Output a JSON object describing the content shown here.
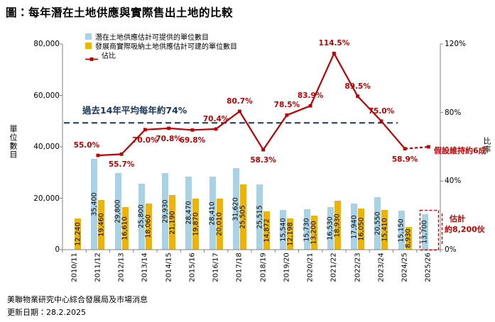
{
  "title": "圖：每年潛在土地供應與實際售出土地的比較",
  "colors": {
    "supply": "#A8D3E6",
    "absorbed": "#F0B400",
    "ratio": "#C00000",
    "average": "#17375E",
    "axis": "#808080"
  },
  "footer": {
    "source": "美聯物業研究中心綜合發展局及市場消息",
    "updated": "更新日期：28.2.2025"
  },
  "chart_data": {
    "type": "bar+line",
    "title": "每年潛在土地供應與實際售出土地的比較",
    "categories": [
      "2010/11",
      "2011/12",
      "2012/13",
      "2013/14",
      "2014/15",
      "2015/16",
      "2016/17",
      "2017/18",
      "2018/19",
      "2019/20",
      "2020/21",
      "2021/22",
      "2022/23",
      "2023/24",
      "2024/25",
      "2025/26"
    ],
    "left_axis": {
      "label": "單位數目",
      "min": 0,
      "max": 80000,
      "ticks": [
        0,
        20000,
        40000,
        60000,
        80000
      ]
    },
    "right_axis": {
      "label": "比率",
      "min": 0,
      "max": 120,
      "ticks": [
        0,
        40,
        80,
        120
      ],
      "unit": "%"
    },
    "series": [
      {
        "name": "潛在土地供應估計可提供的單位數目",
        "type": "bar",
        "color_key": "supply",
        "values": [
          null,
          35400,
          29800,
          25800,
          29930,
          28470,
          28410,
          31620,
          25515,
          15540,
          15730,
          16530,
          17940,
          20550,
          15150,
          13700
        ]
      },
      {
        "name": "發展商實際吸納土地供應估計可建的單位數目",
        "type": "bar",
        "color_key": "absorbed",
        "values": [
          12240,
          19460,
          16610,
          18060,
          21190,
          19870,
          20010,
          25505,
          14872,
          12198,
          13200,
          18930,
          16050,
          15410,
          8930,
          null
        ]
      },
      {
        "name": "佔比",
        "type": "line",
        "color_key": "ratio",
        "unit": "%",
        "values": [
          null,
          55.0,
          55.7,
          70.0,
          70.8,
          69.8,
          70.4,
          80.7,
          58.3,
          78.5,
          83.9,
          114.5,
          89.5,
          75.0,
          58.9,
          60.0
        ],
        "point_labels": [
          "",
          "55.0%",
          "55.7%",
          "70.0%",
          "70.8%",
          "69.8%",
          "70.4%",
          "80.7%",
          "58.3%",
          "78.5%",
          "83.9%",
          "114.5%",
          "89.5%",
          "75.0%",
          "58.9%",
          ""
        ],
        "label_side": [
          "",
          "above",
          "below",
          "below",
          "below",
          "below",
          "above",
          "above",
          "below",
          "above",
          "above",
          "above",
          "above",
          "above",
          "below",
          ""
        ],
        "label_dx": [
          0,
          -16,
          0,
          0,
          0,
          0,
          0,
          0,
          0,
          0,
          0,
          0,
          0,
          0,
          0,
          0
        ],
        "dashed_from_index": 14
      }
    ],
    "average_line": {
      "value": 74,
      "label": "過去14年平均每年約74%"
    },
    "annotations": {
      "assumption": "假設維持約6成",
      "estimate_title": "估計",
      "estimate_value": "約8,200伙"
    }
  }
}
